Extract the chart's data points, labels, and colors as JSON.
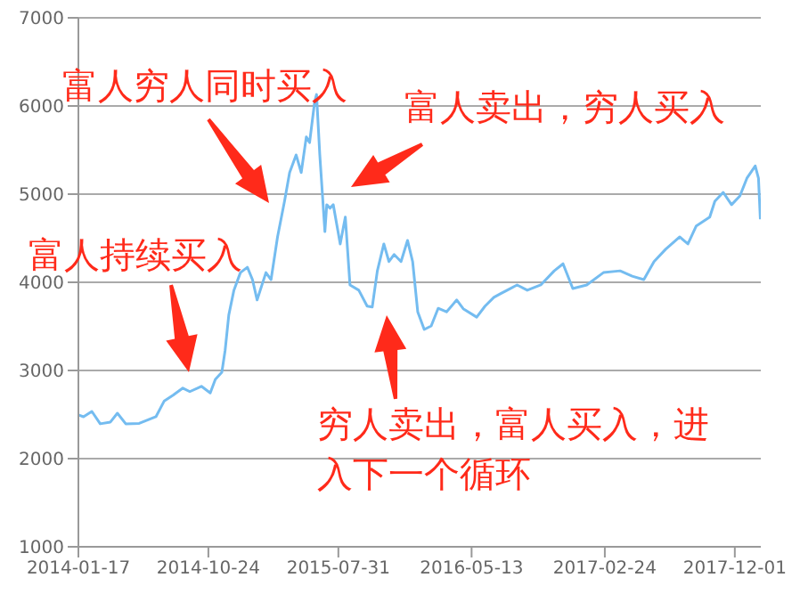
{
  "chart_data": {
    "type": "line",
    "x": [
      "2014-01-17",
      "2014-01-28",
      "2014-02-15",
      "2014-03-05",
      "2014-03-27",
      "2014-04-11",
      "2014-04-29",
      "2014-05-28",
      "2014-07-03",
      "2014-07-21",
      "2014-08-09",
      "2014-08-30",
      "2014-09-14",
      "2014-10-09",
      "2014-10-28",
      "2014-11-08",
      "2014-11-22",
      "2014-11-29",
      "2014-12-07",
      "2014-12-18",
      "2015-01-01",
      "2015-01-16",
      "2015-01-27",
      "2015-02-06",
      "2015-02-25",
      "2015-03-08",
      "2015-03-22",
      "2015-04-06",
      "2015-04-17",
      "2015-05-01",
      "2015-05-12",
      "2015-05-23",
      "2015-05-30",
      "2015-06-10",
      "2015-06-14",
      "2015-06-21",
      "2015-07-02",
      "2015-07-06",
      "2015-07-13",
      "2015-07-20",
      "2015-08-04",
      "2015-08-15",
      "2015-08-25",
      "2015-09-13",
      "2015-10-01",
      "2015-10-12",
      "2015-10-23",
      "2015-11-06",
      "2015-11-17",
      "2015-11-28",
      "2015-12-13",
      "2015-12-27",
      "2016-01-07",
      "2016-01-18",
      "2016-02-01",
      "2016-02-16",
      "2016-03-02",
      "2016-03-20",
      "2016-04-11",
      "2016-04-25",
      "2016-05-24",
      "2016-06-11",
      "2016-06-30",
      "2016-07-14",
      "2016-08-05",
      "2016-08-19",
      "2016-09-10",
      "2016-10-09",
      "2016-11-07",
      "2016-11-26",
      "2016-12-17",
      "2017-01-16",
      "2017-02-21",
      "2017-03-29",
      "2017-04-24",
      "2017-05-19",
      "2017-06-10",
      "2017-07-05",
      "2017-08-04",
      "2017-08-22",
      "2017-09-09",
      "2017-10-08",
      "2017-10-19",
      "2017-11-06",
      "2017-11-24",
      "2017-12-12",
      "2017-12-27",
      "2018-01-14",
      "2018-01-21",
      "2018-01-25"
    ],
    "series": [
      {
        "color": "#74bcf0",
        "values": [
          2495,
          2475,
          2535,
          2395,
          2415,
          2515,
          2395,
          2400,
          2475,
          2655,
          2720,
          2800,
          2760,
          2820,
          2745,
          2900,
          2980,
          3225,
          3630,
          3910,
          4110,
          4170,
          4030,
          3800,
          4110,
          4030,
          4515,
          4920,
          5245,
          5445,
          5245,
          5650,
          5585,
          6050,
          6130,
          5445,
          4575,
          4880,
          4840,
          4880,
          4435,
          4740,
          3970,
          3910,
          3730,
          3720,
          4130,
          4435,
          4235,
          4315,
          4235,
          4475,
          4235,
          3665,
          3465,
          3505,
          3705,
          3665,
          3800,
          3700,
          3605,
          3730,
          3830,
          3870,
          3930,
          3970,
          3910,
          3970,
          4130,
          4210,
          3930,
          3970,
          4110,
          4130,
          4070,
          4030,
          4235,
          4375,
          4515,
          4435,
          4640,
          4740,
          4920,
          5020,
          4880,
          4980,
          5180,
          5320,
          5180,
          4715
        ]
      }
    ],
    "xlim": [
      "2014-01-17",
      "2018-01-26"
    ],
    "xticks": [
      "2014-01-17",
      "2014-10-24",
      "2015-07-31",
      "2016-05-13",
      "2017-02-24",
      "2017-12-01"
    ],
    "ylim": [
      1000,
      7000
    ],
    "yticks": [
      1000,
      2000,
      3000,
      4000,
      5000,
      6000,
      7000
    ],
    "grid": "y",
    "annotations": [
      "富人穷人同时买入",
      "富人卖出，穷人买入",
      "富人持续买入",
      "穷人卖出，富人买入，进入下一个循环"
    ]
  }
}
